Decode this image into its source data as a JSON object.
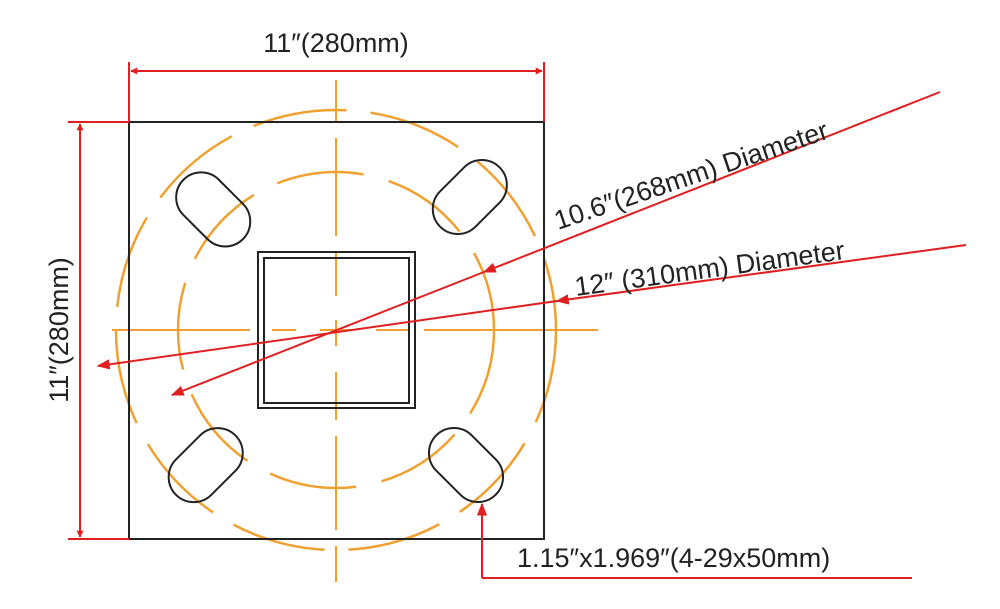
{
  "labels": {
    "width_dim": "11″(280mm)",
    "height_dim": "11″(280mm)",
    "bolt_circle_small": "10.6″(268mm) Diameter",
    "bolt_circle_large": "12″ (310mm) Diameter",
    "slot_spec": "1.15″x1.969″(4-29x50mm)"
  },
  "colors": {
    "dimension": "#e02020",
    "centerline": "#f0a030",
    "outline": "#222222"
  }
}
